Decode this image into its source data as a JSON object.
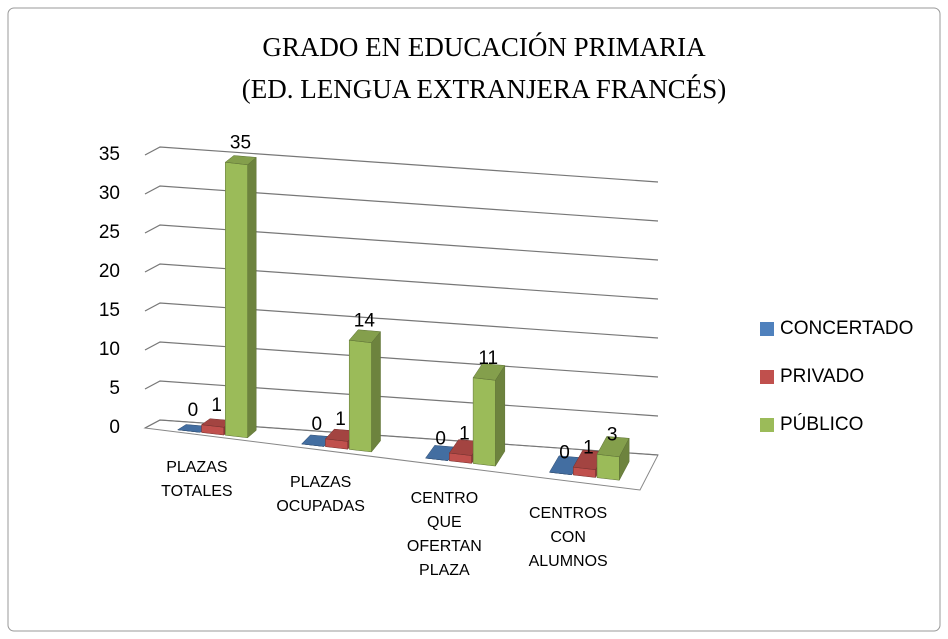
{
  "chart_data": {
    "type": "bar3d",
    "title": [
      "GRADO EN EDUCACIÓN PRIMARIA",
      "(ED. LENGUA EXTRANJERA FRANCÉS)"
    ],
    "categories": [
      "PLAZAS TOTALES",
      "PLAZAS OCUPADAS",
      "CENTRO QUE OFERTAN PLAZA",
      "CENTROS CON ALUMNOS"
    ],
    "series": [
      {
        "name": "CONCERTADO",
        "color": "#4f81bd",
        "values": [
          0,
          0,
          0,
          0
        ]
      },
      {
        "name": "PRIVADO",
        "color": "#c0504d",
        "values": [
          1,
          1,
          1,
          1
        ]
      },
      {
        "name": "PÚBLICO",
        "color": "#9bbb59",
        "values": [
          35,
          14,
          11,
          3
        ]
      }
    ],
    "ylim": [
      0,
      35
    ],
    "yticks": [
      0,
      5,
      10,
      15,
      20,
      25,
      30,
      35
    ],
    "grid": true,
    "legend": "right"
  }
}
